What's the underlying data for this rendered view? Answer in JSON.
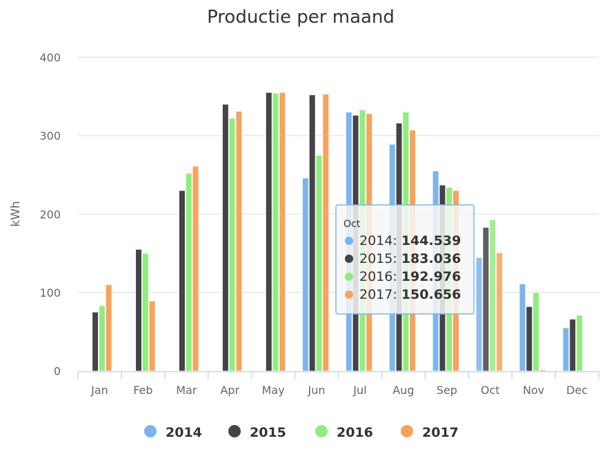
{
  "chart_data": {
    "type": "bar",
    "title": "Productie per maand",
    "xlabel": "",
    "ylabel": "kWh",
    "ylim": [
      0,
      400
    ],
    "yticks": [
      0,
      100,
      200,
      300,
      400
    ],
    "grid": true,
    "legend_position": "bottom",
    "categories": [
      "Jan",
      "Feb",
      "Mar",
      "Apr",
      "May",
      "Jun",
      "Jul",
      "Aug",
      "Sep",
      "Oct",
      "Nov",
      "Dec"
    ],
    "series": [
      {
        "name": "2014",
        "color": "#7cb5ec",
        "values": [
          null,
          null,
          null,
          null,
          null,
          246,
          330,
          289,
          255,
          144.539,
          111,
          55
        ]
      },
      {
        "name": "2015",
        "color": "#434348",
        "values": [
          75,
          155,
          230,
          340,
          355,
          352,
          326,
          316,
          237,
          183.036,
          82,
          66
        ]
      },
      {
        "name": "2016",
        "color": "#90ed7d",
        "values": [
          83,
          150,
          252,
          322,
          354,
          275,
          333,
          330,
          234,
          192.976,
          100,
          71
        ]
      },
      {
        "name": "2017",
        "color": "#f7a35c",
        "values": [
          110,
          89,
          261,
          331,
          355,
          353,
          328,
          307,
          230,
          150.656,
          1.5,
          null
        ]
      }
    ],
    "tooltip": {
      "category": "Oct",
      "rows": [
        {
          "name": "2014",
          "value": "144.539"
        },
        {
          "name": "2015",
          "value": "183.036"
        },
        {
          "name": "2016",
          "value": "192.976"
        },
        {
          "name": "2017",
          "value": "150.656"
        }
      ]
    }
  }
}
